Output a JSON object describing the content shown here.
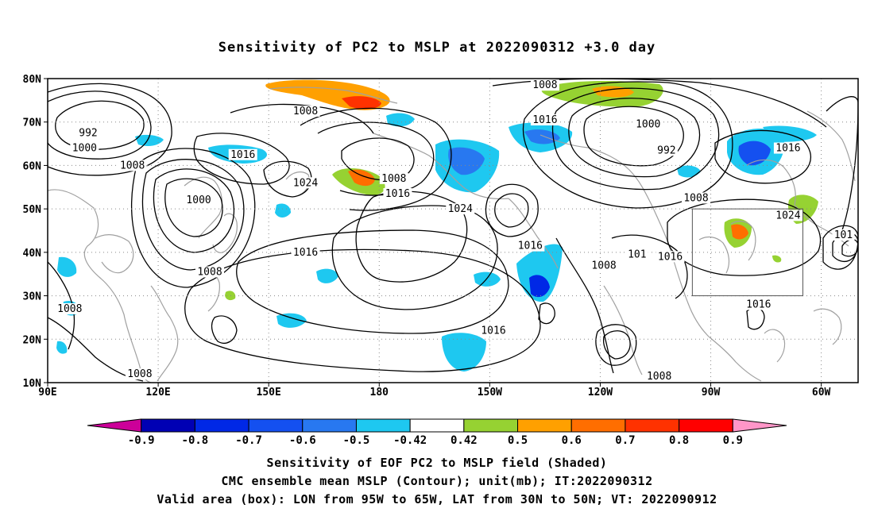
{
  "title": "Sensitivity of PC2 to MSLP at 2022090312 +3.0 day",
  "axes": {
    "lat_labels": [
      "80N",
      "70N",
      "60N",
      "50N",
      "40N",
      "30N",
      "20N",
      "10N"
    ],
    "lat_values": [
      80,
      70,
      60,
      50,
      40,
      30,
      20,
      10
    ],
    "lon_labels": [
      "90E",
      "120E",
      "150E",
      "180",
      "150W",
      "120W",
      "90W",
      "60W"
    ],
    "lon_values": [
      90,
      120,
      150,
      180,
      210,
      240,
      270,
      300
    ],
    "lon_range": [
      90,
      310
    ],
    "lat_range": [
      10,
      80
    ],
    "grid": "dotted"
  },
  "valid_box": {
    "lon_west": 265,
    "lon_east": 295,
    "lat_south": 30,
    "lat_north": 50
  },
  "contour_labels": [
    {
      "text": "992",
      "lon": 101,
      "lat": 67.5
    },
    {
      "text": "1000",
      "lon": 100,
      "lat": 64
    },
    {
      "text": "1008",
      "lon": 113,
      "lat": 60
    },
    {
      "text": "1000",
      "lon": 131,
      "lat": 52
    },
    {
      "text": "1016",
      "lon": 143,
      "lat": 62.5
    },
    {
      "text": "1024",
      "lon": 160,
      "lat": 56
    },
    {
      "text": "1008",
      "lon": 160,
      "lat": 72.5
    },
    {
      "text": "1008",
      "lon": 184,
      "lat": 57
    },
    {
      "text": "1016",
      "lon": 185,
      "lat": 53.5
    },
    {
      "text": "1024",
      "lon": 202,
      "lat": 50
    },
    {
      "text": "1016",
      "lon": 160,
      "lat": 40
    },
    {
      "text": "1008",
      "lon": 134,
      "lat": 35.5
    },
    {
      "text": "1008",
      "lon": 96,
      "lat": 27
    },
    {
      "text": "1008",
      "lon": 115,
      "lat": 12
    },
    {
      "text": "1016",
      "lon": 211,
      "lat": 22
    },
    {
      "text": "1008",
      "lon": 225,
      "lat": 78.5
    },
    {
      "text": "1016",
      "lon": 225,
      "lat": 70.5
    },
    {
      "text": "1000",
      "lon": 253,
      "lat": 69.5
    },
    {
      "text": "992",
      "lon": 258,
      "lat": 63.5
    },
    {
      "text": "1008",
      "lon": 266,
      "lat": 52.5
    },
    {
      "text": "1016",
      "lon": 291,
      "lat": 64
    },
    {
      "text": "1024",
      "lon": 291,
      "lat": 48.5
    },
    {
      "text": "1016",
      "lon": 221,
      "lat": 41.5
    },
    {
      "text": "1008",
      "lon": 241,
      "lat": 37
    },
    {
      "text": "101",
      "lon": 250,
      "lat": 39.5
    },
    {
      "text": "1016",
      "lon": 259,
      "lat": 39
    },
    {
      "text": "1016",
      "lon": 283,
      "lat": 28
    },
    {
      "text": "1008",
      "lon": 256,
      "lat": 11.5
    },
    {
      "text": "101",
      "lon": 306,
      "lat": 44
    }
  ],
  "colorbar": {
    "labels": [
      "-0.9",
      "-0.8",
      "-0.7",
      "-0.6",
      "-0.5",
      "-0.42",
      "0.42",
      "0.5",
      "0.6",
      "0.7",
      "0.8",
      "0.9"
    ],
    "colors": [
      "#cc0099",
      "#0000b4",
      "#0028e6",
      "#1450f0",
      "#2878f0",
      "#1ec8f0",
      "#ffffff",
      "#96d232",
      "#ffa000",
      "#ff6e00",
      "#ff3200",
      "#ff0000",
      "#ff96c8"
    ]
  },
  "footer": {
    "line1": "Sensitivity of EOF PC2 to MSLP field (Shaded)",
    "line2": "CMC ensemble mean MSLP (Contour); unit(mb); IT:2022090312",
    "line3": "Valid area (box): LON from 95W to 65W, LAT from 30N to 50N; VT: 2022090912"
  }
}
